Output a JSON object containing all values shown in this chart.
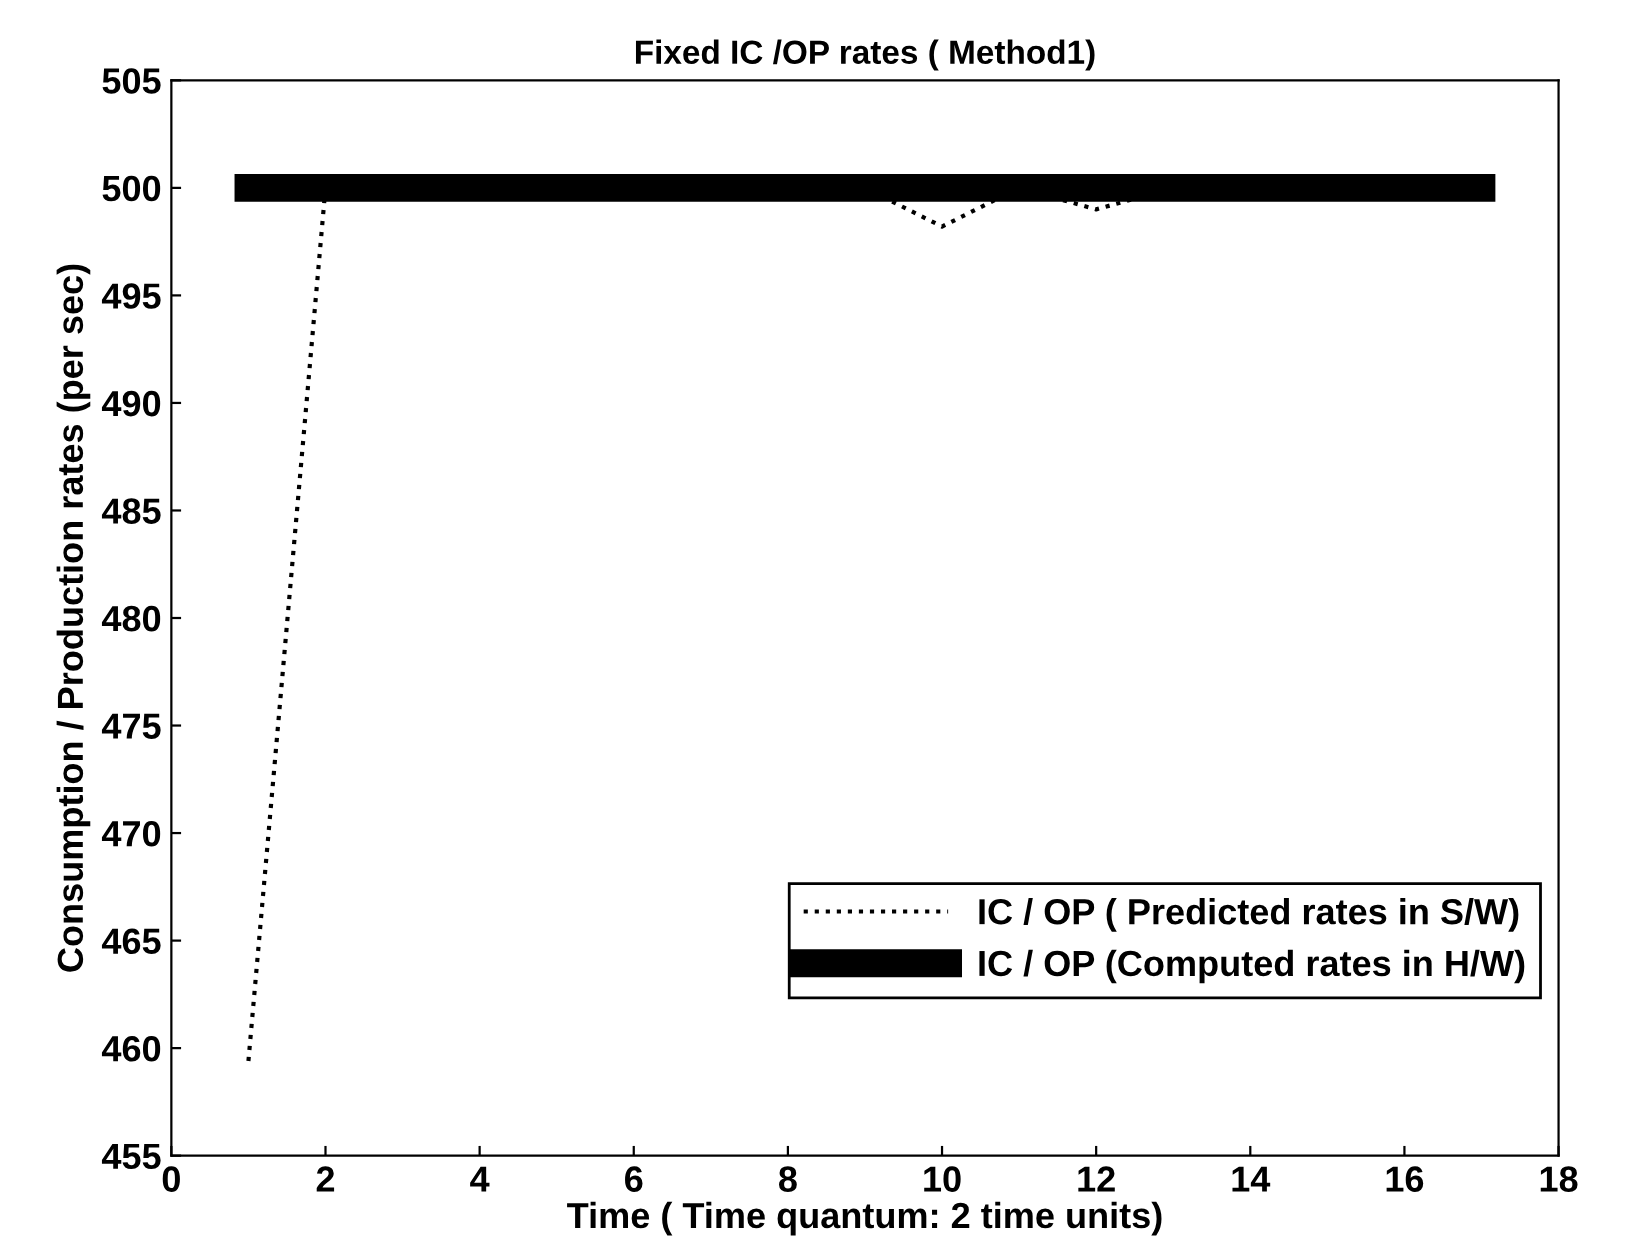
{
  "chart_data": {
    "type": "line",
    "title": "Fixed IC /OP rates ( Method1)",
    "xlabel": "Time ( Time quantum: 2 time units)",
    "ylabel": "Consumption / Production rates (per sec)",
    "x": [
      1,
      2,
      3,
      4,
      5,
      6,
      7,
      8,
      9,
      10,
      11,
      12,
      13,
      14,
      15,
      16,
      17
    ],
    "series": [
      {
        "name": "IC / OP ( Predicted rates in S/W)",
        "color": "#000000",
        "line_style": "dotted",
        "values": [
          459.4,
          500,
          500,
          500,
          500,
          500,
          500,
          500,
          500,
          498.2,
          500,
          499.0,
          500,
          500,
          500,
          500,
          500
        ]
      },
      {
        "name": "IC / OP (Computed rates in H/W)",
        "color": "#000000",
        "line_style": "solid",
        "values": [
          500,
          500,
          500,
          500,
          500,
          500,
          500,
          500,
          500,
          500,
          500,
          500,
          500,
          500,
          500,
          500,
          500
        ]
      }
    ],
    "xlim": [
      0,
      18
    ],
    "xticks": [
      0,
      2,
      4,
      6,
      8,
      10,
      12,
      14,
      16,
      18
    ],
    "ylim": [
      455,
      505
    ],
    "yticks": [
      455,
      460,
      465,
      470,
      475,
      480,
      485,
      490,
      495,
      500,
      505
    ],
    "grid": false,
    "legend": "bottom right"
  }
}
